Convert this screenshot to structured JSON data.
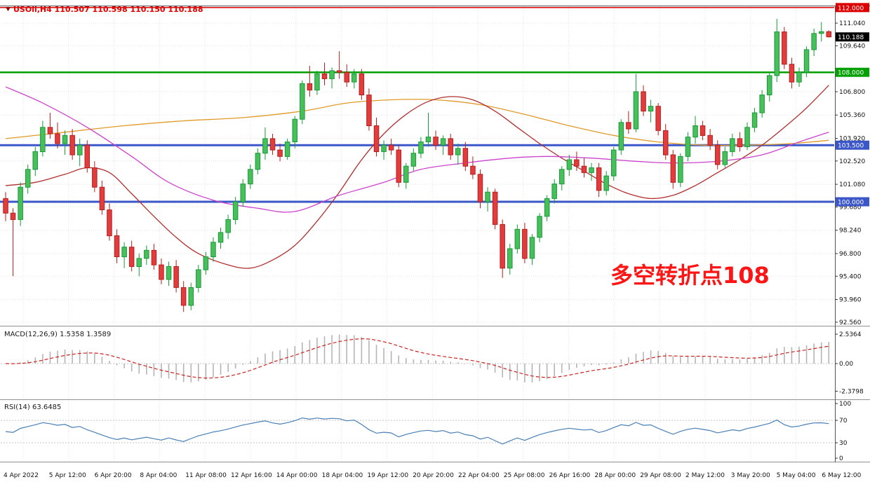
{
  "header": {
    "title": "USOil,H4 110.507 110.598 110.150 110.188"
  },
  "annotation": {
    "text": "多空转折点108",
    "color": "#ff1515"
  },
  "panels": {
    "macd": {
      "label": "MACD(12,26,9) 1.5358 1.3589",
      "axis_labels": [
        "2.5364",
        "0.00",
        "-2.3798"
      ]
    },
    "rsi": {
      "label": "RSI(14) 63.6485",
      "axis_labels": [
        "100",
        "70",
        "30",
        "0"
      ]
    }
  },
  "price_axis": {
    "ticks": [
      "111.040",
      "109.640",
      "106.800",
      "105.360",
      "103.920",
      "102.520",
      "101.080",
      "99.680",
      "98.240",
      "96.800",
      "95.400",
      "93.960",
      "92.560"
    ],
    "badges": [
      {
        "label": "112.000",
        "price": 112.0,
        "bg": "#dd0000"
      },
      {
        "label": "110.188",
        "price": 110.188,
        "bg": "#000000"
      },
      {
        "label": "108.000",
        "price": 108.0,
        "bg": "#00a000"
      },
      {
        "label": "103.500",
        "price": 103.5,
        "bg": "#3a56c8"
      },
      {
        "label": "100.000",
        "price": 100.0,
        "bg": "#3a56c8"
      }
    ]
  },
  "time_axis": {
    "labels": [
      "4 Apr 2022",
      "5 Apr 12:00",
      "6 Apr 20:00",
      "8 Apr 04:00",
      "11 Apr 08:00",
      "12 Apr 16:00",
      "14 Apr 00:00",
      "18 Apr 04:00",
      "19 Apr 12:00",
      "20 Apr 20:00",
      "22 Apr 04:00",
      "25 Apr 08:00",
      "26 Apr 16:00",
      "28 Apr 00:00",
      "29 Apr 08:00",
      "2 May 12:00",
      "3 May 20:00",
      "5 May 04:00",
      "6 May 12:00"
    ]
  },
  "chart_data": {
    "type": "candlestick",
    "symbol": "USOil",
    "timeframe": "H4",
    "last_ohlc": {
      "open": 110.507,
      "high": 110.598,
      "low": 110.15,
      "close": 110.188
    },
    "y_axis_range": [
      92.2,
      112.4
    ],
    "candles": [
      [
        100.2,
        100.6,
        98.8,
        99.3
      ],
      [
        99.3,
        99.6,
        95.4,
        98.9
      ],
      [
        98.9,
        101.2,
        98.5,
        100.9
      ],
      [
        100.9,
        102.3,
        100.5,
        102.0
      ],
      [
        102.0,
        103.4,
        101.6,
        103.1
      ],
      [
        103.1,
        105.0,
        102.8,
        104.6
      ],
      [
        104.6,
        105.5,
        103.9,
        104.2
      ],
      [
        104.2,
        104.9,
        103.3,
        103.6
      ],
      [
        103.6,
        104.4,
        102.9,
        104.1
      ],
      [
        104.1,
        104.5,
        102.6,
        102.9
      ],
      [
        102.9,
        103.9,
        102.2,
        103.5
      ],
      [
        103.5,
        103.8,
        101.8,
        102.1
      ],
      [
        102.1,
        102.5,
        100.6,
        100.9
      ],
      [
        100.9,
        101.3,
        99.2,
        99.5
      ],
      [
        99.5,
        99.9,
        97.6,
        97.9
      ],
      [
        97.9,
        98.3,
        96.2,
        96.6
      ],
      [
        96.6,
        97.5,
        95.9,
        97.2
      ],
      [
        97.2,
        97.6,
        95.7,
        96.0
      ],
      [
        96.0,
        96.8,
        95.4,
        96.5
      ],
      [
        96.5,
        97.3,
        96.1,
        97.0
      ],
      [
        97.0,
        97.4,
        95.8,
        96.1
      ],
      [
        96.1,
        96.5,
        94.9,
        95.2
      ],
      [
        95.2,
        96.3,
        94.8,
        96.0
      ],
      [
        96.0,
        96.4,
        94.4,
        94.7
      ],
      [
        94.7,
        95.1,
        93.2,
        93.6
      ],
      [
        93.6,
        95.0,
        93.3,
        94.7
      ],
      [
        94.7,
        96.1,
        94.4,
        95.8
      ],
      [
        95.8,
        96.9,
        95.5,
        96.6
      ],
      [
        96.6,
        97.8,
        96.3,
        97.5
      ],
      [
        97.5,
        98.4,
        97.1,
        98.1
      ],
      [
        98.1,
        99.2,
        97.7,
        98.9
      ],
      [
        98.9,
        100.3,
        98.6,
        100.0
      ],
      [
        100.0,
        101.4,
        99.7,
        101.1
      ],
      [
        101.1,
        102.3,
        100.8,
        102.0
      ],
      [
        102.0,
        103.3,
        101.7,
        103.0
      ],
      [
        103.0,
        104.6,
        102.6,
        103.9
      ],
      [
        103.9,
        104.2,
        102.9,
        103.2
      ],
      [
        103.2,
        103.6,
        102.5,
        102.8
      ],
      [
        102.8,
        103.9,
        102.6,
        103.7
      ],
      [
        103.7,
        105.3,
        103.3,
        105.1
      ],
      [
        105.1,
        107.5,
        104.8,
        107.3
      ],
      [
        107.3,
        108.4,
        106.5,
        106.9
      ],
      [
        106.9,
        108.1,
        106.6,
        107.9
      ],
      [
        107.9,
        108.6,
        107.2,
        107.6
      ],
      [
        107.6,
        108.3,
        107.0,
        108.1
      ],
      [
        108.1,
        109.3,
        107.6,
        108.0
      ],
      [
        108.0,
        108.5,
        107.1,
        107.4
      ],
      [
        107.4,
        108.2,
        107.0,
        107.9
      ],
      [
        107.9,
        108.2,
        106.3,
        106.6
      ],
      [
        106.6,
        107.0,
        104.4,
        104.7
      ],
      [
        104.7,
        105.2,
        102.8,
        103.1
      ],
      [
        103.1,
        103.8,
        102.6,
        103.5
      ],
      [
        103.5,
        103.9,
        102.9,
        103.2
      ],
      [
        103.2,
        103.5,
        100.9,
        101.2
      ],
      [
        101.2,
        102.4,
        100.8,
        102.2
      ],
      [
        102.2,
        103.3,
        101.9,
        103.0
      ],
      [
        103.0,
        104.0,
        102.7,
        103.7
      ],
      [
        103.7,
        105.5,
        103.4,
        104.0
      ],
      [
        104.0,
        104.4,
        103.2,
        103.5
      ],
      [
        103.5,
        104.1,
        102.9,
        103.9
      ],
      [
        103.9,
        104.2,
        102.6,
        102.9
      ],
      [
        102.9,
        103.6,
        102.3,
        103.3
      ],
      [
        103.3,
        103.7,
        101.9,
        102.2
      ],
      [
        102.2,
        102.8,
        101.4,
        101.7
      ],
      [
        101.7,
        102.0,
        99.6,
        100.0
      ],
      [
        100.0,
        100.9,
        99.4,
        100.6
      ],
      [
        100.6,
        100.8,
        98.3,
        98.6
      ],
      [
        98.6,
        98.9,
        95.3,
        95.9
      ],
      [
        95.9,
        97.4,
        95.5,
        97.1
      ],
      [
        97.1,
        98.6,
        96.8,
        98.3
      ],
      [
        98.3,
        98.7,
        96.2,
        96.5
      ],
      [
        96.5,
        98.0,
        96.1,
        97.8
      ],
      [
        97.8,
        99.3,
        97.5,
        99.1
      ],
      [
        99.1,
        100.4,
        98.8,
        100.2
      ],
      [
        100.2,
        101.4,
        99.9,
        101.1
      ],
      [
        101.1,
        102.2,
        100.7,
        102.0
      ],
      [
        102.0,
        102.9,
        101.6,
        102.6
      ],
      [
        102.6,
        103.1,
        101.9,
        102.2
      ],
      [
        102.2,
        102.7,
        101.5,
        101.8
      ],
      [
        101.8,
        102.4,
        101.3,
        102.1
      ],
      [
        102.1,
        102.4,
        100.3,
        100.7
      ],
      [
        100.7,
        101.9,
        100.4,
        101.6
      ],
      [
        101.6,
        103.4,
        101.3,
        103.2
      ],
      [
        103.2,
        105.1,
        102.9,
        104.9
      ],
      [
        104.9,
        105.6,
        104.2,
        104.5
      ],
      [
        104.5,
        107.9,
        104.3,
        106.8
      ],
      [
        106.8,
        107.2,
        105.3,
        105.6
      ],
      [
        105.6,
        106.3,
        104.9,
        105.9
      ],
      [
        105.9,
        106.1,
        104.1,
        104.4
      ],
      [
        104.4,
        104.8,
        102.6,
        102.9
      ],
      [
        102.9,
        103.2,
        100.8,
        101.2
      ],
      [
        101.2,
        103.0,
        100.9,
        102.8
      ],
      [
        102.8,
        104.3,
        102.5,
        104.0
      ],
      [
        104.0,
        105.3,
        103.6,
        104.7
      ],
      [
        104.7,
        105.0,
        103.8,
        104.1
      ],
      [
        104.1,
        104.5,
        103.2,
        103.5
      ],
      [
        103.5,
        103.8,
        102.0,
        102.3
      ],
      [
        102.3,
        103.4,
        102.1,
        103.1
      ],
      [
        103.1,
        104.2,
        102.8,
        103.9
      ],
      [
        103.9,
        104.3,
        103.1,
        103.4
      ],
      [
        103.4,
        104.9,
        103.2,
        104.6
      ],
      [
        104.6,
        105.8,
        104.3,
        105.5
      ],
      [
        105.5,
        106.9,
        105.2,
        106.6
      ],
      [
        106.6,
        108.0,
        106.2,
        107.8
      ],
      [
        107.8,
        111.3,
        107.4,
        110.5
      ],
      [
        110.5,
        110.8,
        108.2,
        108.5
      ],
      [
        108.5,
        108.9,
        107.0,
        107.4
      ],
      [
        107.4,
        108.3,
        107.1,
        108.0
      ],
      [
        108.0,
        109.6,
        107.7,
        109.4
      ],
      [
        109.4,
        110.7,
        109.0,
        110.4
      ],
      [
        110.4,
        111.1,
        109.9,
        110.51
      ],
      [
        110.51,
        110.6,
        110.15,
        110.19
      ]
    ],
    "hlines": [
      {
        "price": 112.0,
        "color": "#dd0000",
        "width": 1.5
      },
      {
        "price": 108.0,
        "color": "#00a000",
        "width": 2.5
      },
      {
        "price": 103.5,
        "color": "#3a56c8",
        "width": 3
      },
      {
        "price": 100.0,
        "color": "#3a56c8",
        "width": 3
      }
    ],
    "moving_averages": [
      {
        "name": "ma-slow-orange",
        "color": "#e09a28",
        "points": [
          [
            0,
            103.9
          ],
          [
            8,
            104.3
          ],
          [
            16,
            104.7
          ],
          [
            24,
            105.0
          ],
          [
            32,
            105.2
          ],
          [
            40,
            105.6
          ],
          [
            46,
            106.1
          ],
          [
            52,
            106.3
          ],
          [
            58,
            106.3
          ],
          [
            64,
            106.0
          ],
          [
            70,
            105.4
          ],
          [
            76,
            104.7
          ],
          [
            82,
            104.1
          ],
          [
            88,
            103.7
          ],
          [
            94,
            103.5
          ],
          [
            100,
            103.5
          ],
          [
            106,
            103.6
          ],
          [
            111,
            103.8
          ]
        ]
      },
      {
        "name": "ma-mid-darkred",
        "color": "#b03030",
        "points": [
          [
            0,
            101.0
          ],
          [
            4,
            101.2
          ],
          [
            8,
            101.7
          ],
          [
            11,
            102.1
          ],
          [
            14,
            101.8
          ],
          [
            17,
            100.5
          ],
          [
            20,
            99.1
          ],
          [
            23,
            97.8
          ],
          [
            26,
            96.8
          ],
          [
            30,
            96.1
          ],
          [
            33,
            95.9
          ],
          [
            36,
            96.4
          ],
          [
            39,
            97.3
          ],
          [
            42,
            98.8
          ],
          [
            45,
            100.6
          ],
          [
            48,
            102.6
          ],
          [
            51,
            104.2
          ],
          [
            54,
            105.4
          ],
          [
            57,
            106.2
          ],
          [
            60,
            106.5
          ],
          [
            63,
            106.3
          ],
          [
            66,
            105.6
          ],
          [
            69,
            104.6
          ],
          [
            72,
            103.6
          ],
          [
            75,
            102.7
          ],
          [
            78,
            101.9
          ],
          [
            81,
            101.1
          ],
          [
            84,
            100.5
          ],
          [
            87,
            100.2
          ],
          [
            90,
            100.4
          ],
          [
            93,
            101.0
          ],
          [
            96,
            101.8
          ],
          [
            99,
            102.6
          ],
          [
            102,
            103.5
          ],
          [
            105,
            104.6
          ],
          [
            108,
            105.8
          ],
          [
            111,
            107.2
          ]
        ]
      },
      {
        "name": "ma-long-magenta",
        "color": "#cc44cc",
        "points": [
          [
            0,
            107.1
          ],
          [
            5,
            106.1
          ],
          [
            11,
            104.6
          ],
          [
            17,
            102.8
          ],
          [
            22,
            101.2
          ],
          [
            28,
            100.1
          ],
          [
            34,
            99.6
          ],
          [
            39,
            99.4
          ],
          [
            45,
            100.4
          ],
          [
            51,
            101.2
          ],
          [
            56,
            102.0
          ],
          [
            62,
            102.4
          ],
          [
            68,
            102.7
          ],
          [
            73,
            102.8
          ],
          [
            79,
            102.7
          ],
          [
            85,
            102.5
          ],
          [
            90,
            102.4
          ],
          [
            96,
            102.5
          ],
          [
            102,
            102.9
          ],
          [
            107,
            103.7
          ],
          [
            111,
            104.3
          ]
        ]
      }
    ],
    "indicators": {
      "macd": {
        "params": [
          12,
          26,
          9
        ],
        "main": 1.5358,
        "signal": 1.3589,
        "axis": [
          2.5364,
          0.0,
          -2.3798
        ]
      },
      "rsi": {
        "period": 14,
        "value": 63.6485,
        "levels": [
          70,
          30
        ]
      }
    }
  },
  "colors": {
    "up": "#189a38",
    "up_fill": "#48bf5a",
    "down": "#b51f1f",
    "down_fill": "#e23c3c",
    "macd_bar": "#b5b5b5",
    "macd_signal": "#cc2222",
    "rsi_line": "#4a7fb5"
  }
}
